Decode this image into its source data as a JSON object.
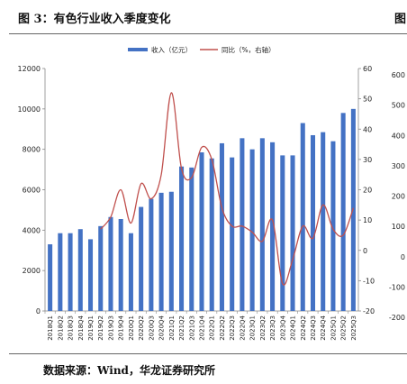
{
  "figure": {
    "title": "图 3：有色行业收入季度变化",
    "next_title_fragment": "图",
    "source": "数据来源：Wind，华龙证券研究所"
  },
  "chart_data": {
    "type": "bar",
    "categories": [
      "2018Q1",
      "2018Q2",
      "2018Q3",
      "2018Q4",
      "2019Q1",
      "2019Q2",
      "2019Q3",
      "2019Q4",
      "2020Q1",
      "2020Q2",
      "2020Q3",
      "2020Q4",
      "2021Q1",
      "2021Q2",
      "2021Q3",
      "2021Q4",
      "2022Q1",
      "2022Q2",
      "2022Q3",
      "2022Q4",
      "2023Q1",
      "2023Q2",
      "2023Q3",
      "2023Q4",
      "2024Q1",
      "2024Q2",
      "2024Q3",
      "2024Q4",
      "2025Q1",
      "2025Q2",
      "2025Q3"
    ],
    "series": [
      {
        "name": "收入（亿元）",
        "type": "bar",
        "axis": "left",
        "color": "#4472C4",
        "values": [
          3300,
          3850,
          3850,
          4050,
          3550,
          4200,
          4650,
          4550,
          3850,
          5150,
          5550,
          5850,
          5900,
          7150,
          7100,
          7850,
          7550,
          8300,
          7600,
          8550,
          8000,
          8550,
          8350,
          7700,
          7700,
          9300,
          8700,
          8850,
          8400,
          9800,
          10000
        ]
      },
      {
        "name": "同比（%，右轴）",
        "type": "line",
        "axis": "right1",
        "color": "#C0504D",
        "values": [
          null,
          null,
          null,
          null,
          null,
          7,
          11,
          20,
          9,
          22,
          17,
          25,
          52,
          27,
          24,
          34,
          30,
          14,
          8,
          8,
          6,
          3,
          10,
          -11,
          -3,
          8,
          4,
          15,
          7,
          5,
          14
        ]
      }
    ],
    "left_axis": {
      "min": 0,
      "max": 12000,
      "step": 2000,
      "ticks": [
        "0",
        "2000",
        "4000",
        "6000",
        "8000",
        "10000",
        "12000"
      ]
    },
    "right_axis_1": {
      "min": -20,
      "max": 60,
      "step": 10,
      "ticks": [
        "-20",
        "-10",
        "0",
        "10",
        "20",
        "30",
        "40",
        "50",
        "60"
      ]
    },
    "right_axis_2": {
      "min": -200,
      "max": 600,
      "step": 100,
      "ticks": [
        "-200",
        "-100",
        "0",
        "100",
        "200",
        "300",
        "400",
        "500",
        "600"
      ]
    },
    "legend_position": "top-center",
    "grid": false
  }
}
